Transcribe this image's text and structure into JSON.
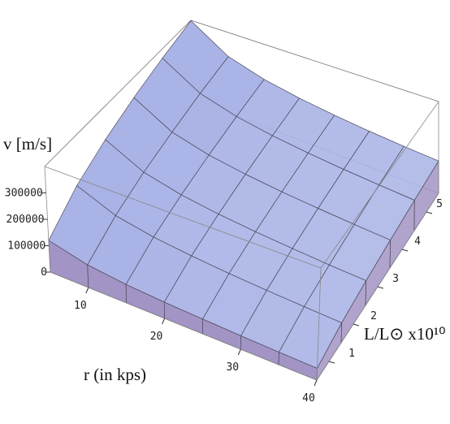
{
  "chart_data": {
    "type": "surface",
    "x_label": "r (in kps)",
    "y_label": "L/L⊙ x10¹⁰",
    "z_label": "v [m/s]",
    "x": [
      5,
      10,
      15,
      20,
      25,
      30,
      35,
      40
    ],
    "y": [
      0.5,
      1.5,
      2.5,
      3.5,
      4.5,
      5.5
    ],
    "values": [
      [
        120000,
        208000,
        268000,
        317000,
        360000,
        398000
      ],
      [
        85000,
        147000,
        190000,
        224000,
        255000,
        281000
      ],
      [
        69000,
        120000,
        155000,
        183000,
        208000,
        230000
      ],
      [
        60000,
        104000,
        134000,
        159000,
        180000,
        199000
      ],
      [
        54000,
        93000,
        120000,
        142000,
        161000,
        178000
      ],
      [
        49000,
        85000,
        110000,
        130000,
        147000,
        162000
      ],
      [
        45000,
        79000,
        101000,
        120000,
        136000,
        150000
      ],
      [
        42000,
        74000,
        95000,
        112000,
        127000,
        141000
      ]
    ],
    "xlim": [
      5,
      40
    ],
    "ylim": [
      0.5,
      5.5
    ],
    "zlim": [
      0,
      400000
    ],
    "xticks": [
      10,
      20,
      30,
      40
    ],
    "yticks": [
      1,
      2,
      3,
      4,
      5
    ],
    "zticks": [
      0,
      100000,
      200000,
      300000
    ],
    "color": "#aab3e6",
    "side_color": "#a294c4"
  }
}
